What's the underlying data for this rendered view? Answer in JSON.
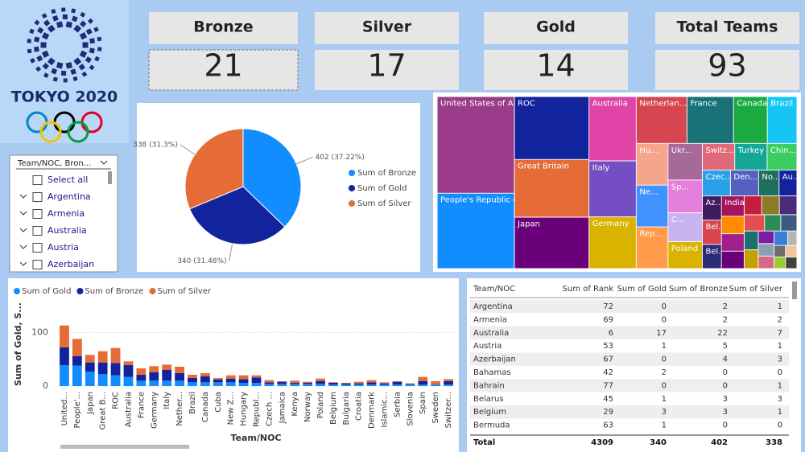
{
  "logo": {
    "title": "TOKYO 2020"
  },
  "cards": [
    {
      "label": "Bronze",
      "value": 21
    },
    {
      "label": "Silver",
      "value": 17
    },
    {
      "label": "Gold",
      "value": 14
    },
    {
      "label": "Total Teams",
      "value": 93
    }
  ],
  "slicer": {
    "header": "Team/NOC, Bron...",
    "items": [
      "Select all",
      "Argentina",
      "Armenia",
      "Australia",
      "Austria",
      "Azerbaijan"
    ]
  },
  "chart_data": [
    {
      "type": "pie",
      "categories": [
        "Sum of Bronze",
        "Sum of Gold",
        "Sum of Silver"
      ],
      "values": [
        402,
        340,
        338
      ],
      "value_labels": [
        "402 (37.22%)",
        "340 (31.48%)",
        "338 (31.3%)"
      ],
      "colors": [
        "#118dff",
        "#12239e",
        "#e66c37"
      ]
    },
    {
      "type": "treemap",
      "categories": [
        "United States of Am...",
        "People's Republic of ...",
        "ROC",
        "Great Britain",
        "Japan",
        "Australia",
        "Italy",
        "Germany",
        "Netherlan...",
        "France",
        "Canada",
        "Brazil",
        "Hu...",
        "Ne...",
        "Rep...",
        "Ukr...",
        "Sp...",
        "C...",
        "Poland",
        "Switz...",
        "Turkey",
        "Chin...",
        "Czec...",
        "Den...",
        "No...",
        "Au...",
        "Az...",
        "Bel...",
        "Bel...",
        "India",
        null,
        null,
        null,
        null,
        null,
        null,
        null,
        null,
        null,
        null,
        null,
        null,
        null,
        null,
        null,
        null,
        null,
        null,
        null,
        null
      ],
      "values": [
        113,
        88,
        71,
        65,
        58,
        46,
        40,
        37,
        36,
        33,
        24,
        21,
        20,
        20,
        20,
        19,
        17,
        15,
        14,
        13,
        13,
        12,
        11,
        11,
        8,
        7,
        7,
        7,
        7,
        7,
        6,
        6,
        6,
        5,
        5,
        5,
        5,
        4,
        4,
        4,
        4,
        3,
        3,
        3,
        3,
        2,
        2,
        2,
        2,
        2
      ],
      "colors": [
        "#9b3c8a",
        "#118dff",
        "#12239e",
        "#e66c37",
        "#6b007b",
        "#e044a7",
        "#744ec2",
        "#d9b300",
        "#d64550",
        "#197278",
        "#1aab40",
        "#15c6f4",
        "#f4a58a",
        "#4092ff",
        "#ff9b4a",
        "#a66999",
        "#e57fdc",
        "#c8b4f0",
        "#d9b300",
        "#e06a78",
        "#14a698",
        "#3ccd60",
        "#2aa0e6",
        "#5561bf",
        "#1f6f5f",
        "#12239e",
        "#3e1a5e",
        "#d64550",
        "#2b2b7a",
        "#a7145e",
        "#ff8c00",
        "#a21e8c",
        "#6b007b",
        "#c41e3a",
        "#8a7a2a",
        "#4b2c7a",
        "#e44e4e",
        "#2e8b57",
        "#3d5a80",
        "#1b6f6f",
        "#c4a000",
        "#7b1fa2",
        "#8aa0b5",
        "#d46a8a",
        "#3b7dd8",
        "#b4b4b4",
        "#6e6e6e",
        "#f0c4a0",
        "#9acd32",
        "#404040"
      ]
    },
    {
      "type": "stacked-bar",
      "xlabel": "Team/NOC",
      "ylabel": "Sum of Gold, S...",
      "categories": [
        "United...",
        "People'...",
        "Japan",
        "Great B...",
        "ROC",
        "Australia",
        "France",
        "Germany",
        "Italy",
        "Nether...",
        "Brazil",
        "Canada",
        "Cuba",
        "New Z...",
        "Hungary",
        "Republ...",
        "Czech ...",
        "Jamaica",
        "Kenya",
        "Norway",
        "Poland",
        "Belgium",
        "Bulgaria",
        "Croatia",
        "Denmark",
        "Islamic...",
        "Serbia",
        "Slovenia",
        "Spain",
        "Sweden",
        "Switzer..."
      ],
      "series": [
        {
          "name": "Sum of Gold",
          "color": "#118dff",
          "values": [
            39,
            38,
            27,
            22,
            20,
            17,
            10,
            10,
            10,
            10,
            7,
            7,
            7,
            7,
            6,
            6,
            4,
            4,
            4,
            4,
            4,
            3,
            3,
            3,
            3,
            3,
            3,
            3,
            3,
            3,
            3
          ]
        },
        {
          "name": "Sum of Bronze",
          "color": "#12239e",
          "values": [
            33,
            18,
            17,
            22,
            23,
            22,
            11,
            16,
            20,
            14,
            8,
            11,
            5,
            7,
            7,
            10,
            3,
            4,
            2,
            2,
            5,
            3,
            2,
            2,
            4,
            2,
            5,
            1,
            6,
            0,
            6
          ]
        },
        {
          "name": "Sum of Silver",
          "color": "#e66c37",
          "values": [
            41,
            32,
            14,
            21,
            28,
            7,
            12,
            11,
            10,
            12,
            6,
            6,
            3,
            6,
            7,
            4,
            4,
            1,
            4,
            2,
            5,
            1,
            1,
            3,
            4,
            2,
            1,
            1,
            8,
            6,
            4
          ]
        }
      ],
      "ylim": [
        0,
        120
      ],
      "yticks": [
        0,
        100
      ]
    }
  ],
  "table": {
    "headers": [
      "Team/NOC",
      "Sum of Rank",
      "Sum of Gold",
      "Sum of Bronze",
      "Sum of Silver"
    ],
    "rows": [
      [
        "Argentina",
        72,
        0,
        2,
        1
      ],
      [
        "Armenia",
        69,
        0,
        2,
        2
      ],
      [
        "Australia",
        6,
        17,
        22,
        7
      ],
      [
        "Austria",
        53,
        1,
        5,
        1
      ],
      [
        "Azerbaijan",
        67,
        0,
        4,
        3
      ],
      [
        "Bahamas",
        42,
        2,
        0,
        0
      ],
      [
        "Bahrain",
        77,
        0,
        0,
        1
      ],
      [
        "Belarus",
        45,
        1,
        3,
        3
      ],
      [
        "Belgium",
        29,
        3,
        3,
        1
      ],
      [
        "Bermuda",
        63,
        1,
        0,
        0
      ]
    ],
    "total": [
      "Total",
      4309,
      340,
      402,
      338
    ]
  }
}
